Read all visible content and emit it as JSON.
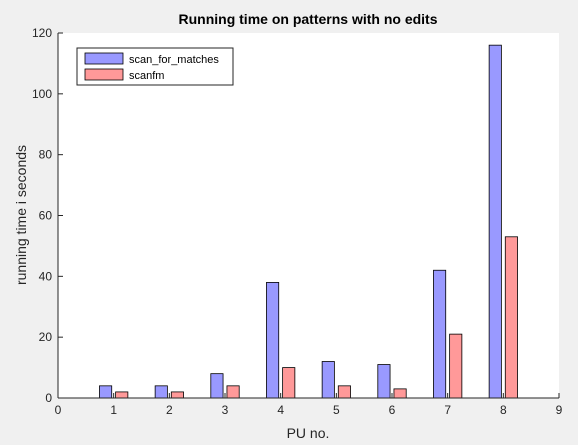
{
  "chart_data": {
    "type": "bar",
    "title": "Running time on patterns with no edits",
    "xlabel": "PU no.",
    "ylabel": "running time i seconds",
    "xlim": [
      0,
      9
    ],
    "ylim": [
      0,
      120
    ],
    "xticks": [
      "0",
      "1",
      "2",
      "3",
      "4",
      "5",
      "6",
      "7",
      "8",
      "9"
    ],
    "yticks": [
      "0",
      "20",
      "40",
      "60",
      "80",
      "100",
      "120"
    ],
    "categories": [
      1,
      2,
      3,
      4,
      5,
      6,
      7,
      8
    ],
    "series": [
      {
        "name": "scan_for_matches",
        "color": "#9999ff",
        "values": [
          4,
          4,
          8,
          38,
          12,
          11,
          42,
          116
        ]
      },
      {
        "name": "scanfm",
        "color": "#ff9999",
        "values": [
          2,
          2,
          4,
          10,
          4,
          3,
          21,
          53
        ]
      }
    ],
    "grid": false,
    "legend_position": "top-left",
    "background": "#f0f0f0",
    "axes_color": "#ffffff"
  }
}
